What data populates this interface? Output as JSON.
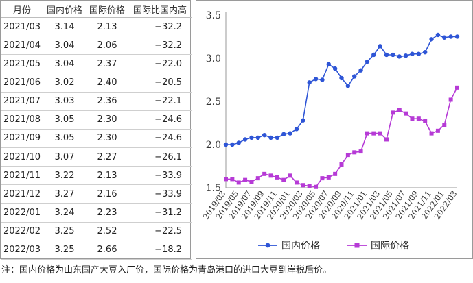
{
  "table": {
    "headers": [
      "月份",
      "国内价格",
      "国际价格",
      "国际比国内高"
    ],
    "rows": [
      [
        "2021/03",
        "3.14",
        "2.13",
        "−32.2"
      ],
      [
        "2021/04",
        "3.04",
        "2.06",
        "−32.2"
      ],
      [
        "2021/05",
        "3.04",
        "2.37",
        "−22.0"
      ],
      [
        "2021/06",
        "3.02",
        "2.40",
        "−20.5"
      ],
      [
        "2021/07",
        "3.03",
        "2.36",
        "−22.1"
      ],
      [
        "2021/08",
        "3.05",
        "2.30",
        "−24.6"
      ],
      [
        "2021/09",
        "3.05",
        "2.30",
        "−24.6"
      ],
      [
        "2021/10",
        "3.07",
        "2.27",
        "−26.1"
      ],
      [
        "2021/11",
        "3.22",
        "2.13",
        "−33.9"
      ],
      [
        "2021/12",
        "3.27",
        "2.16",
        "−33.9"
      ],
      [
        "2022/01",
        "3.24",
        "2.23",
        "−31.2"
      ],
      [
        "2022/02",
        "3.25",
        "2.52",
        "−22.5"
      ],
      [
        "2022/03",
        "3.25",
        "2.66",
        "−18.2"
      ]
    ]
  },
  "chart_data": {
    "type": "line",
    "x": [
      "2019/03",
      "2019/04",
      "2019/05",
      "2019/06",
      "2019/07",
      "2019/08",
      "2019/09",
      "2019/10",
      "2019/11",
      "2019/12",
      "2020/01",
      "2020/02",
      "2020/03",
      "2020/04",
      "2020/05",
      "2020/06",
      "2020/07",
      "2020/08",
      "2020/09",
      "2020/10",
      "2020/11",
      "2020/12",
      "2021/01",
      "2021/02",
      "2021/03",
      "2021/04",
      "2021/05",
      "2021/06",
      "2021/07",
      "2021/08",
      "2021/09",
      "2021/10",
      "2021/11",
      "2021/12",
      "2022/01",
      "2022/02",
      "2022/03"
    ],
    "x_tick_labels": [
      "2019/03",
      "2019/05",
      "2019/07",
      "2019/09",
      "2019/11",
      "2020/01",
      "2020/03",
      "2020/05",
      "2020/07",
      "2020/09",
      "2020/11",
      "2021/01",
      "2021/03",
      "2021/05",
      "2021/07",
      "2021/09",
      "2021/11",
      "2022/01",
      "2022/03"
    ],
    "series": [
      {
        "name": "国内价格",
        "color": "#2e55d6",
        "marker": "circle",
        "values": [
          2.0,
          2.0,
          2.02,
          2.06,
          2.08,
          2.08,
          2.11,
          2.08,
          2.08,
          2.12,
          2.13,
          2.18,
          2.28,
          2.72,
          2.76,
          2.75,
          2.93,
          2.88,
          2.77,
          2.68,
          2.79,
          2.86,
          2.96,
          3.04,
          3.14,
          3.04,
          3.04,
          3.02,
          3.03,
          3.05,
          3.05,
          3.07,
          3.22,
          3.27,
          3.24,
          3.25,
          3.25
        ]
      },
      {
        "name": "国际价格",
        "color": "#b63ad6",
        "marker": "square",
        "values": [
          1.6,
          1.6,
          1.56,
          1.59,
          1.57,
          1.61,
          1.66,
          1.64,
          1.62,
          1.59,
          1.64,
          1.56,
          1.53,
          1.52,
          1.51,
          1.61,
          1.62,
          1.66,
          1.77,
          1.88,
          1.91,
          1.92,
          2.13,
          2.13,
          2.13,
          2.06,
          2.37,
          2.4,
          2.36,
          2.3,
          2.3,
          2.27,
          2.13,
          2.16,
          2.23,
          2.52,
          2.66
        ]
      }
    ],
    "y_ticks": [
      "1.5",
      "2.0",
      "2.5",
      "3.0",
      "3.5"
    ],
    "ylim": [
      1.5,
      3.5
    ],
    "grid": false,
    "legend_position": "bottom"
  },
  "note": "注：国内价格为山东国产大豆入厂价，国际价格为青岛港口的进口大豆到岸税后价。"
}
